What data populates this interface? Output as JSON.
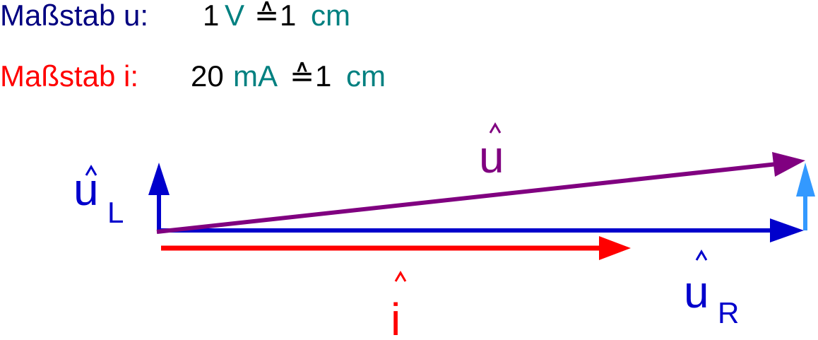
{
  "scales": {
    "u": {
      "label": "Maßstab u:",
      "value": "1",
      "unit": "V",
      "corresponds": "≙",
      "length": "1",
      "length_unit": "cm"
    },
    "i": {
      "label": "Maßstab i:",
      "value": "20",
      "unit": "mA",
      "corresponds": "≙",
      "length": "1",
      "length_unit": "cm"
    }
  },
  "vectors": {
    "u": {
      "symbol": "u",
      "color": "#800080"
    },
    "uL": {
      "symbol": "u",
      "subscript": "L",
      "color": "#0000cc"
    },
    "uR": {
      "symbol": "u",
      "subscript": "R",
      "color": "#0000cc"
    },
    "i": {
      "symbol": "i",
      "color": "#ff0000"
    },
    "uL_shifted": {
      "color": "#3399ff"
    }
  },
  "colors": {
    "scale_u": "#000080",
    "scale_i": "#ff0000",
    "unit": "#008080",
    "number": "#000000"
  }
}
